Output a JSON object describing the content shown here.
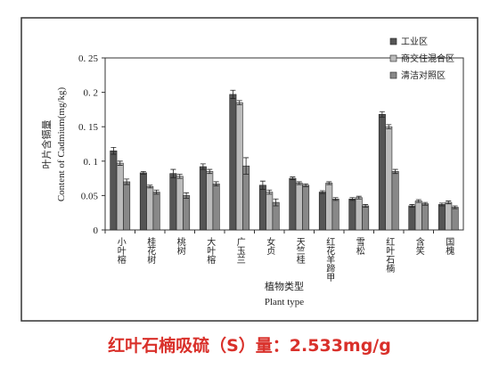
{
  "chart_data": {
    "type": "bar",
    "categories": [
      "小叶榕",
      "桂花树",
      "桃树",
      "大叶榕",
      "广玉兰",
      "女贞",
      "天竺桂",
      "红花羊蹄甲",
      "雪松",
      "红叶石楠",
      "含笑",
      "国槐"
    ],
    "series": [
      {
        "name": "工业区",
        "color": "#555555",
        "values": [
          0.115,
          0.083,
          0.082,
          0.092,
          0.197,
          0.065,
          0.075,
          0.055,
          0.045,
          0.168,
          0.035,
          0.037
        ],
        "errors": [
          0.005,
          0.002,
          0.006,
          0.004,
          0.006,
          0.006,
          0.002,
          0.002,
          0.002,
          0.004,
          0.002,
          0.002
        ]
      },
      {
        "name": "商交住混合区",
        "color": "#bbbbbb",
        "values": [
          0.097,
          0.063,
          0.078,
          0.085,
          0.185,
          0.055,
          0.068,
          0.068,
          0.047,
          0.15,
          0.042,
          0.04
        ],
        "errors": [
          0.003,
          0.002,
          0.003,
          0.003,
          0.003,
          0.003,
          0.002,
          0.002,
          0.002,
          0.003,
          0.002,
          0.002
        ]
      },
      {
        "name": "清洁对照区",
        "color": "#888888",
        "values": [
          0.07,
          0.055,
          0.05,
          0.067,
          0.093,
          0.04,
          0.065,
          0.045,
          0.035,
          0.085,
          0.038,
          0.033
        ],
        "errors": [
          0.004,
          0.003,
          0.004,
          0.003,
          0.012,
          0.005,
          0.002,
          0.002,
          0.002,
          0.003,
          0.002,
          0.002
        ]
      }
    ],
    "y_label_zh": "叶片含镉量",
    "y_label_en": "Content of Cadmium(mg/kg)",
    "x_label_zh": "植物类型",
    "x_label_en": "Plant type",
    "ylim": [
      0,
      0.25
    ],
    "yticks": [
      0,
      {
        "value": 0.05,
        "label": "0.05"
      },
      {
        "value": 0.1,
        "label": "0. 1"
      },
      {
        "value": 0.15,
        "label": "0. 15"
      },
      {
        "value": 0.2,
        "label": "0. 2"
      },
      {
        "value": 0.25,
        "label": "0. 25"
      }
    ],
    "legend": "top-right"
  },
  "caption": "红叶石楠吸硫（S）量：2.533mg/g"
}
